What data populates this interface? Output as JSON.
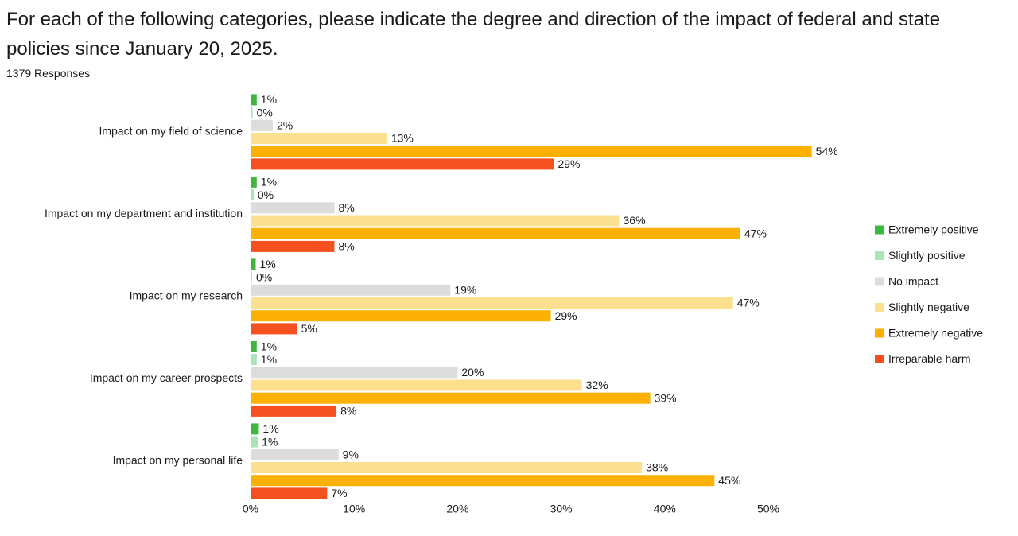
{
  "chart_data": {
    "type": "hbar",
    "title": "For each of the following categories, please indicate the degree and direction of the impact of federal and state policies since January 20, 2025.",
    "subtitle": "1379 Responses",
    "categories": [
      "Impact on my field of science",
      "Impact on my department and institution",
      "Impact on my research",
      "Impact on my career prospects",
      "Impact on my personal life"
    ],
    "series": [
      {
        "name": "Extremely positive",
        "color": "#3cb93c",
        "values": [
          0.6,
          0.6,
          0.5,
          0.6,
          0.8
        ],
        "value_labels": [
          "1%",
          "1%",
          "1%",
          "1%",
          "1%"
        ]
      },
      {
        "name": "Slightly positive",
        "color": "#a8e4b8",
        "values": [
          0.2,
          0.3,
          0.15,
          0.6,
          0.7
        ],
        "value_labels": [
          "0%",
          "0%",
          "0%",
          "1%",
          "1%"
        ]
      },
      {
        "name": "No impact",
        "color": "#dcdcdc",
        "values": [
          2.15,
          8.1,
          19.3,
          20.0,
          8.5
        ],
        "value_labels": [
          "2%",
          "8%",
          "19%",
          "20%",
          "9%"
        ]
      },
      {
        "name": "Slightly negative",
        "color": "#fde08f",
        "values": [
          13.2,
          35.6,
          46.6,
          32.0,
          37.8
        ],
        "value_labels": [
          "13%",
          "36%",
          "47%",
          "32%",
          "38%"
        ]
      },
      {
        "name": "Extremely negative",
        "color": "#fbb003",
        "values": [
          54.2,
          47.3,
          29.0,
          38.6,
          44.8
        ],
        "value_labels": [
          "54%",
          "47%",
          "29%",
          "39%",
          "45%"
        ]
      },
      {
        "name": "Irreparable harm",
        "color": "#f4511e",
        "values": [
          29.3,
          8.1,
          4.5,
          8.3,
          7.4
        ],
        "value_labels": [
          "29%",
          "8%",
          "5%",
          "8%",
          "7%"
        ]
      }
    ],
    "xlim": [
      0,
      55
    ],
    "xticks": [
      {
        "value": 0,
        "label": "0%"
      },
      {
        "value": 10,
        "label": "10%"
      },
      {
        "value": 20,
        "label": "20%"
      },
      {
        "value": 30,
        "label": "30%"
      },
      {
        "value": 40,
        "label": "40%"
      },
      {
        "value": 50,
        "label": "50%"
      }
    ],
    "legend": "right"
  }
}
